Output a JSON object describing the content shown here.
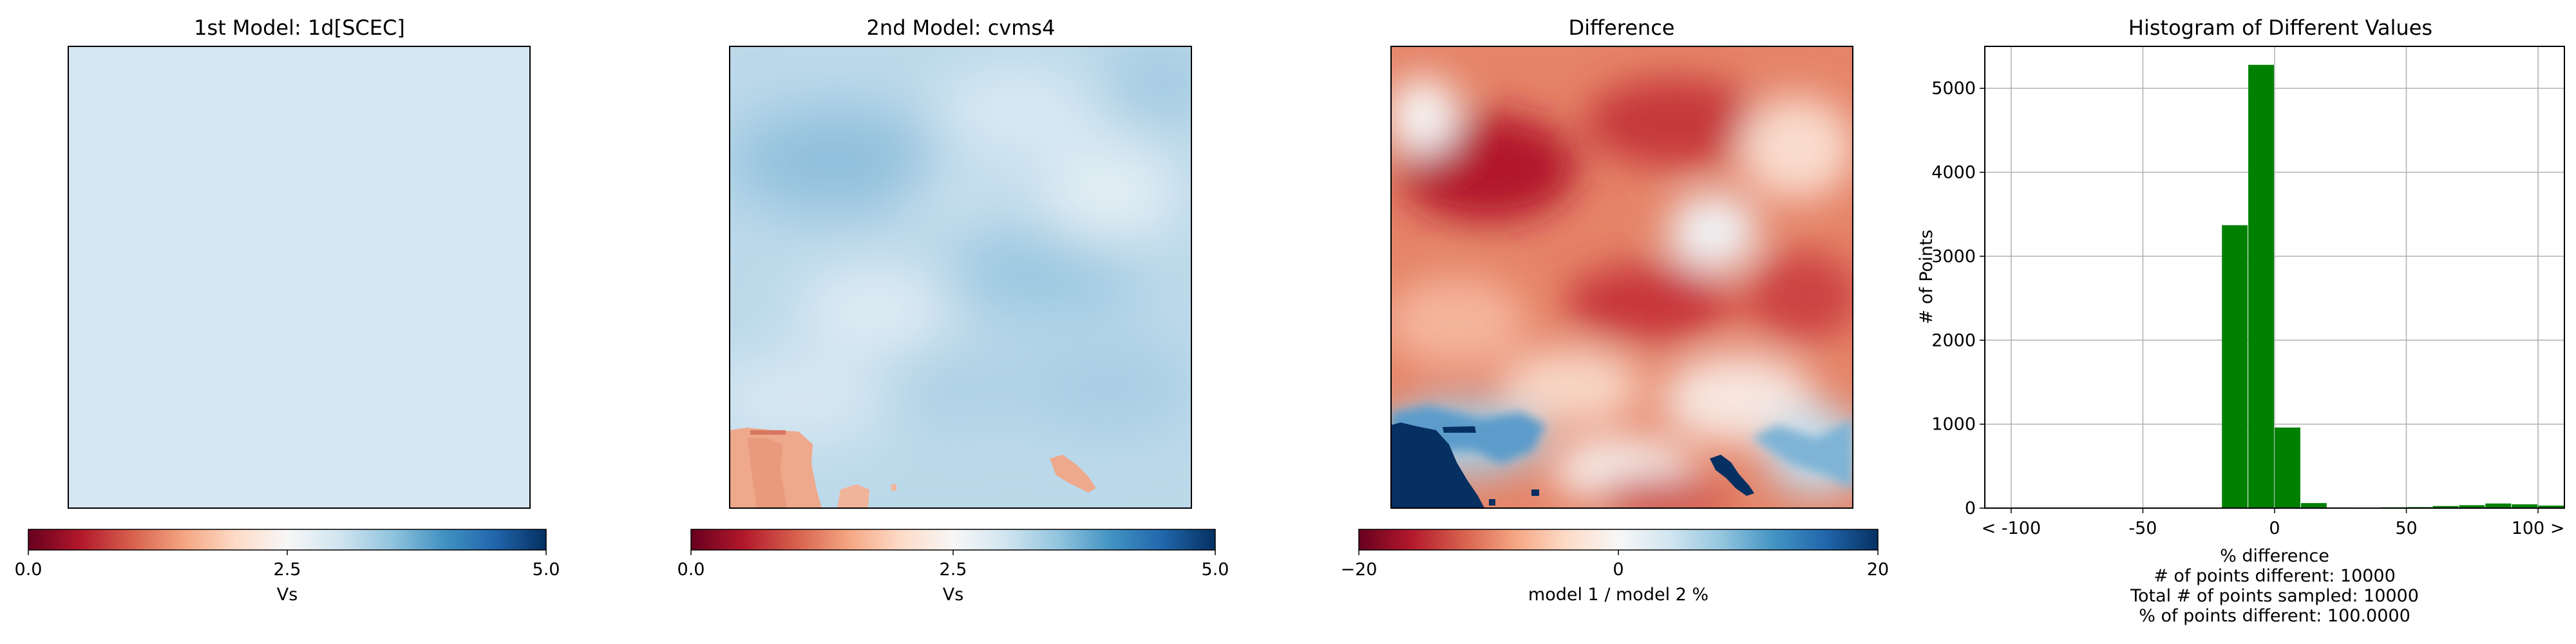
{
  "chart_data": [
    {
      "type": "heatmap",
      "title": "1st Model: 1d[SCEC]",
      "description_value": "uniform Vs field",
      "uniform_value": 2.95,
      "colorbar": {
        "label": "Vs",
        "range": [
          0.0,
          5.0
        ],
        "ticks": [
          "0.0",
          "2.5",
          "5.0"
        ],
        "tick_values": [
          0.0,
          2.5,
          5.0
        ],
        "colormap": "RdBu"
      }
    },
    {
      "type": "heatmap",
      "title": "2nd Model: cvms4",
      "colorbar": {
        "label": "Vs",
        "range": [
          0.0,
          5.0
        ],
        "ticks": [
          "0.0",
          "2.5",
          "5.0"
        ],
        "tick_values": [
          0.0,
          2.5,
          5.0
        ],
        "colormap": "RdBu"
      }
    },
    {
      "type": "heatmap",
      "title": "Difference",
      "colorbar": {
        "label": "model 1 / model 2 %",
        "range": [
          -20,
          20
        ],
        "ticks": [
          "−20",
          "0",
          "20"
        ],
        "tick_values": [
          -20,
          0,
          20
        ],
        "colormap": "RdBu"
      }
    },
    {
      "type": "bar",
      "title": "Histogram of Different Values",
      "xlabel": "% difference",
      "ylabel": "# of Points",
      "xlim": [
        -110,
        110
      ],
      "ylim": [
        0,
        5500
      ],
      "xticks": [
        "< -100",
        "-50",
        "0",
        "50",
        "100 >"
      ],
      "xtick_values": [
        -100,
        -50,
        0,
        50,
        100
      ],
      "yticks": [
        "0",
        "1000",
        "2000",
        "3000",
        "4000",
        "5000"
      ],
      "ytick_values": [
        0,
        1000,
        2000,
        3000,
        4000,
        5000
      ],
      "grid": true,
      "bar_color": "#008000",
      "bins": [
        {
          "x0": -100,
          "x1": -90,
          "value": 0
        },
        {
          "x0": -90,
          "x1": -80,
          "value": 0
        },
        {
          "x0": -80,
          "x1": -70,
          "value": 0
        },
        {
          "x0": -70,
          "x1": -60,
          "value": 0
        },
        {
          "x0": -60,
          "x1": -50,
          "value": 0
        },
        {
          "x0": -50,
          "x1": -40,
          "value": 0
        },
        {
          "x0": -40,
          "x1": -30,
          "value": 0
        },
        {
          "x0": -30,
          "x1": -20,
          "value": 0
        },
        {
          "x0": -20,
          "x1": -10,
          "value": 3370
        },
        {
          "x0": -10,
          "x1": 0,
          "value": 5280
        },
        {
          "x0": 0,
          "x1": 10,
          "value": 960
        },
        {
          "x0": 10,
          "x1": 20,
          "value": 60
        },
        {
          "x0": 20,
          "x1": 30,
          "value": 8
        },
        {
          "x0": 30,
          "x1": 40,
          "value": 5
        },
        {
          "x0": 40,
          "x1": 50,
          "value": 10
        },
        {
          "x0": 50,
          "x1": 60,
          "value": 12
        },
        {
          "x0": 60,
          "x1": 70,
          "value": 25
        },
        {
          "x0": 70,
          "x1": 80,
          "value": 35
        },
        {
          "x0": 80,
          "x1": 90,
          "value": 55
        },
        {
          "x0": 90,
          "x1": 100,
          "value": 45
        },
        {
          "x0": 100,
          "x1": 110,
          "value": 30
        }
      ],
      "stats": [
        "# of points different: 10000",
        "Total # of points sampled: 10000",
        "% of points different: 100.0000"
      ]
    }
  ]
}
